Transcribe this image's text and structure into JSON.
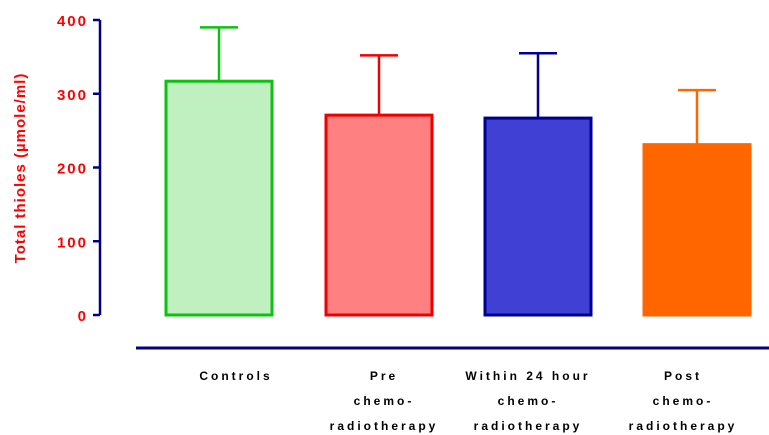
{
  "chart_data": {
    "type": "bar",
    "title": "",
    "xlabel": "",
    "ylabel": "Total thioles (µmole/ml)",
    "ylabel_color": "#ff0000",
    "ylim": [
      0,
      400
    ],
    "yticks": [
      "0",
      "100",
      "200",
      "300",
      "400"
    ],
    "axis_color": "#000080",
    "tick_color": "#ff0000",
    "grid": false,
    "legend": "none",
    "categories": [
      [
        "Controls"
      ],
      [
        "Pre",
        "chemo-",
        "radiotherapy"
      ],
      [
        "Within 24 hour",
        "chemo-",
        "radiotherapy"
      ],
      [
        "Post",
        "chemo-",
        "radiotherapy"
      ]
    ],
    "values": [
      317,
      271,
      267,
      231
    ],
    "error_upper": [
      390,
      352,
      355,
      305
    ],
    "fill_colors": [
      "#c0efc0",
      "#ff8080",
      "#4040d4",
      "#ff6600"
    ],
    "stroke_colors": [
      "#10c010",
      "#ee0000",
      "#000090",
      "#ff6600"
    ]
  }
}
